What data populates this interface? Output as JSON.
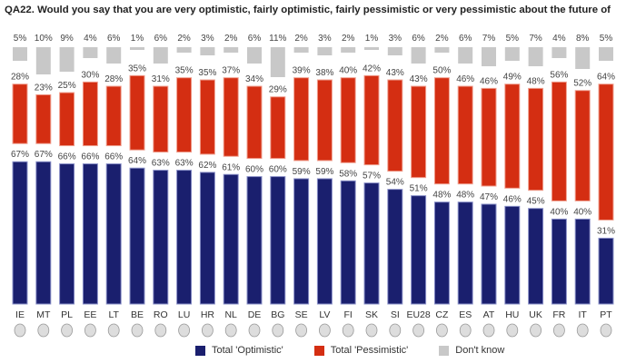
{
  "chart_data": {
    "type": "bar",
    "title": "QA22. Would you say that you are very optimistic, fairly optimistic, fairly pessimistic or very pessimistic about the future of",
    "categories": [
      "IE",
      "MT",
      "PL",
      "EE",
      "LT",
      "BE",
      "RO",
      "LU",
      "HR",
      "NL",
      "DE",
      "BG",
      "SE",
      "LV",
      "FI",
      "SK",
      "SI",
      "EU28",
      "CZ",
      "ES",
      "AT",
      "HU",
      "UK",
      "FR",
      "IT",
      "PT"
    ],
    "series": [
      {
        "name": "Total 'Optimistic'",
        "color": "#1a1f6e",
        "values": [
          67,
          67,
          66,
          66,
          66,
          64,
          63,
          63,
          62,
          61,
          60,
          60,
          59,
          59,
          58,
          57,
          54,
          51,
          48,
          48,
          47,
          46,
          45,
          40,
          40,
          31
        ]
      },
      {
        "name": "Total 'Pessimistic'",
        "color": "#d42e12",
        "values": [
          28,
          23,
          25,
          30,
          28,
          35,
          31,
          35,
          35,
          37,
          34,
          29,
          39,
          38,
          40,
          42,
          43,
          43,
          50,
          46,
          46,
          49,
          48,
          56,
          52,
          64
        ]
      },
      {
        "name": "Don't know",
        "color": "#c8c8c8",
        "values": [
          5,
          10,
          9,
          4,
          6,
          1,
          6,
          2,
          3,
          2,
          6,
          11,
          2,
          3,
          2,
          1,
          3,
          6,
          2,
          6,
          7,
          5,
          7,
          4,
          8,
          5
        ]
      }
    ],
    "unit": "%",
    "legend": "bottom"
  }
}
